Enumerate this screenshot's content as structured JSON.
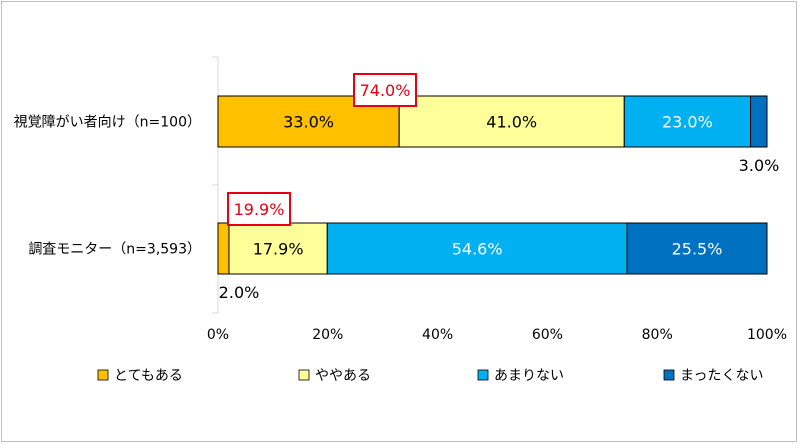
{
  "chart_data": {
    "type": "bar",
    "orientation": "horizontal",
    "stacked": true,
    "percent": true,
    "categories": [
      "視覚障がい者向け（n=100）",
      "調査モニター（n=3,593）"
    ],
    "series": [
      {
        "name": "とてもある",
        "values": [
          33.0,
          2.0
        ],
        "color": "#ffc000",
        "labels": [
          "33.0%",
          "2.0%"
        ]
      },
      {
        "name": "ややある",
        "values": [
          41.0,
          17.9
        ],
        "color": "#ffff99",
        "labels": [
          "41.0%",
          "17.9%"
        ]
      },
      {
        "name": "あまりない",
        "values": [
          23.0,
          54.6
        ],
        "color": "#00b0f0",
        "labels": [
          "23.0%",
          "54.6%"
        ]
      },
      {
        "name": "まったくない",
        "values": [
          3.0,
          25.5
        ],
        "color": "#0070c0",
        "labels": [
          "3.0%",
          "25.5%"
        ]
      }
    ],
    "callouts": [
      "74.0%",
      "19.9%"
    ],
    "xlim": [
      0,
      100
    ],
    "xticks": [
      "0%",
      "20%",
      "40%",
      "60%",
      "80%",
      "100%"
    ],
    "legend_position": "bottom",
    "grid": false
  }
}
